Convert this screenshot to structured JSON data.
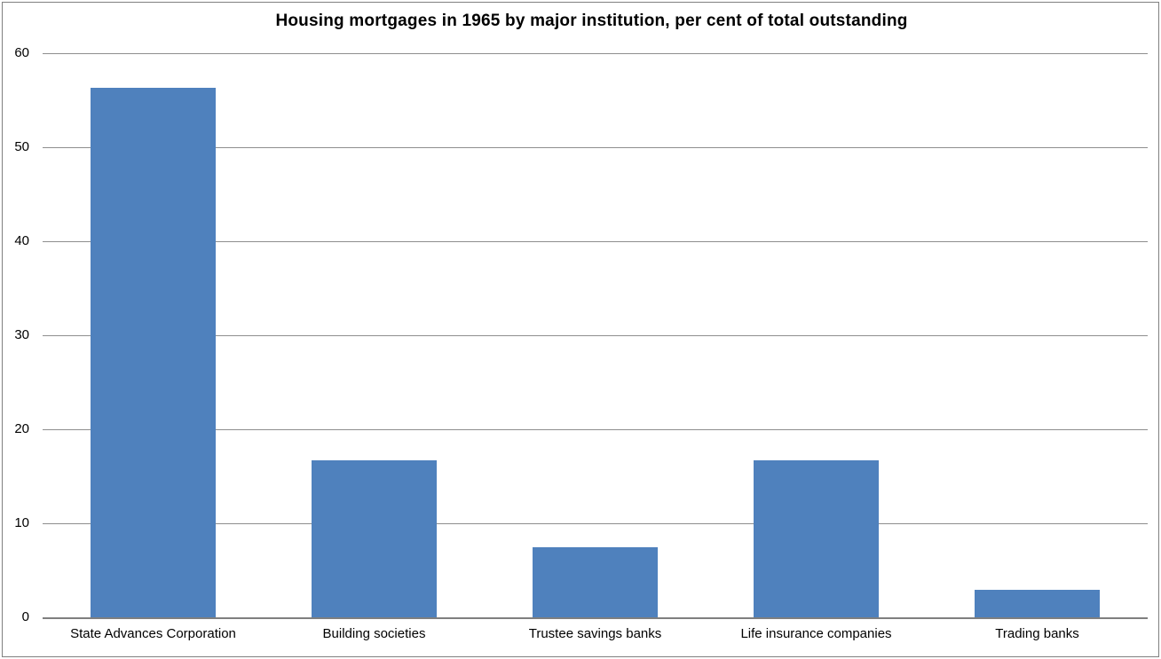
{
  "colors": {
    "bar": "#4f81bd",
    "gridline": "#8e8e8e",
    "axis": "#7f7f7f",
    "frame_border": "#808080",
    "text": "#000000",
    "background": "#ffffff"
  },
  "chart_data": {
    "type": "bar",
    "title": "Housing mortgages in 1965 by major institution, per cent of total outstanding",
    "categories": [
      "State Advances Corporation",
      "Building societies",
      "Trustee savings banks",
      "Life insurance companies",
      "Trading banks"
    ],
    "values": [
      56.3,
      16.7,
      7.5,
      16.7,
      2.9
    ],
    "xlabel": "",
    "ylabel": "",
    "ylim": [
      0,
      60
    ],
    "yticks": [
      0,
      10,
      20,
      30,
      40,
      50,
      60
    ],
    "grid": true,
    "legend": false,
    "legend_position": "none",
    "bar_gap_ratio": 0.57
  }
}
